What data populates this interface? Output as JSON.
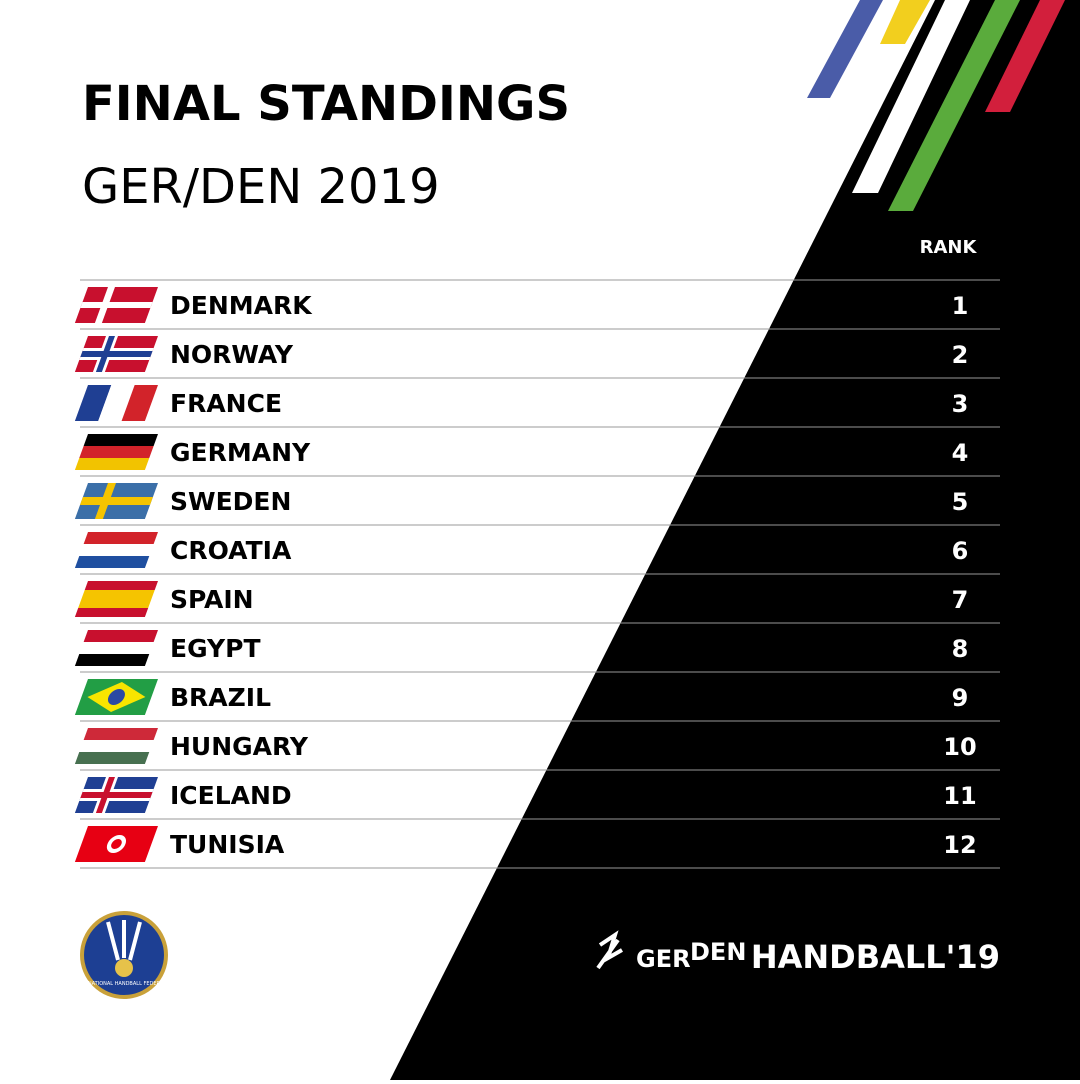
{
  "header": {
    "title": "FINAL STANDINGS",
    "subtitle": "GER/DEN 2019"
  },
  "table": {
    "rank_header": "RANK",
    "rows": [
      [
        "DENMARK",
        1
      ],
      [
        "NORWAY",
        2
      ],
      [
        "FRANCE",
        3
      ],
      [
        "GERMANY",
        4
      ],
      [
        "SWEDEN",
        5
      ],
      [
        "CROATIA",
        6
      ],
      [
        "SPAIN",
        7
      ],
      [
        "EGYPT",
        8
      ],
      [
        "BRAZIL",
        9
      ],
      [
        "HUNGARY",
        10
      ],
      [
        "ICELAND",
        11
      ],
      [
        "TUNISIA",
        12
      ]
    ]
  },
  "footer": {
    "federation": "INTERNATIONAL HANDBALL FEDERATION",
    "brand_left": "GER",
    "brand_right": "DEN",
    "event": "HANDBALL'19"
  }
}
